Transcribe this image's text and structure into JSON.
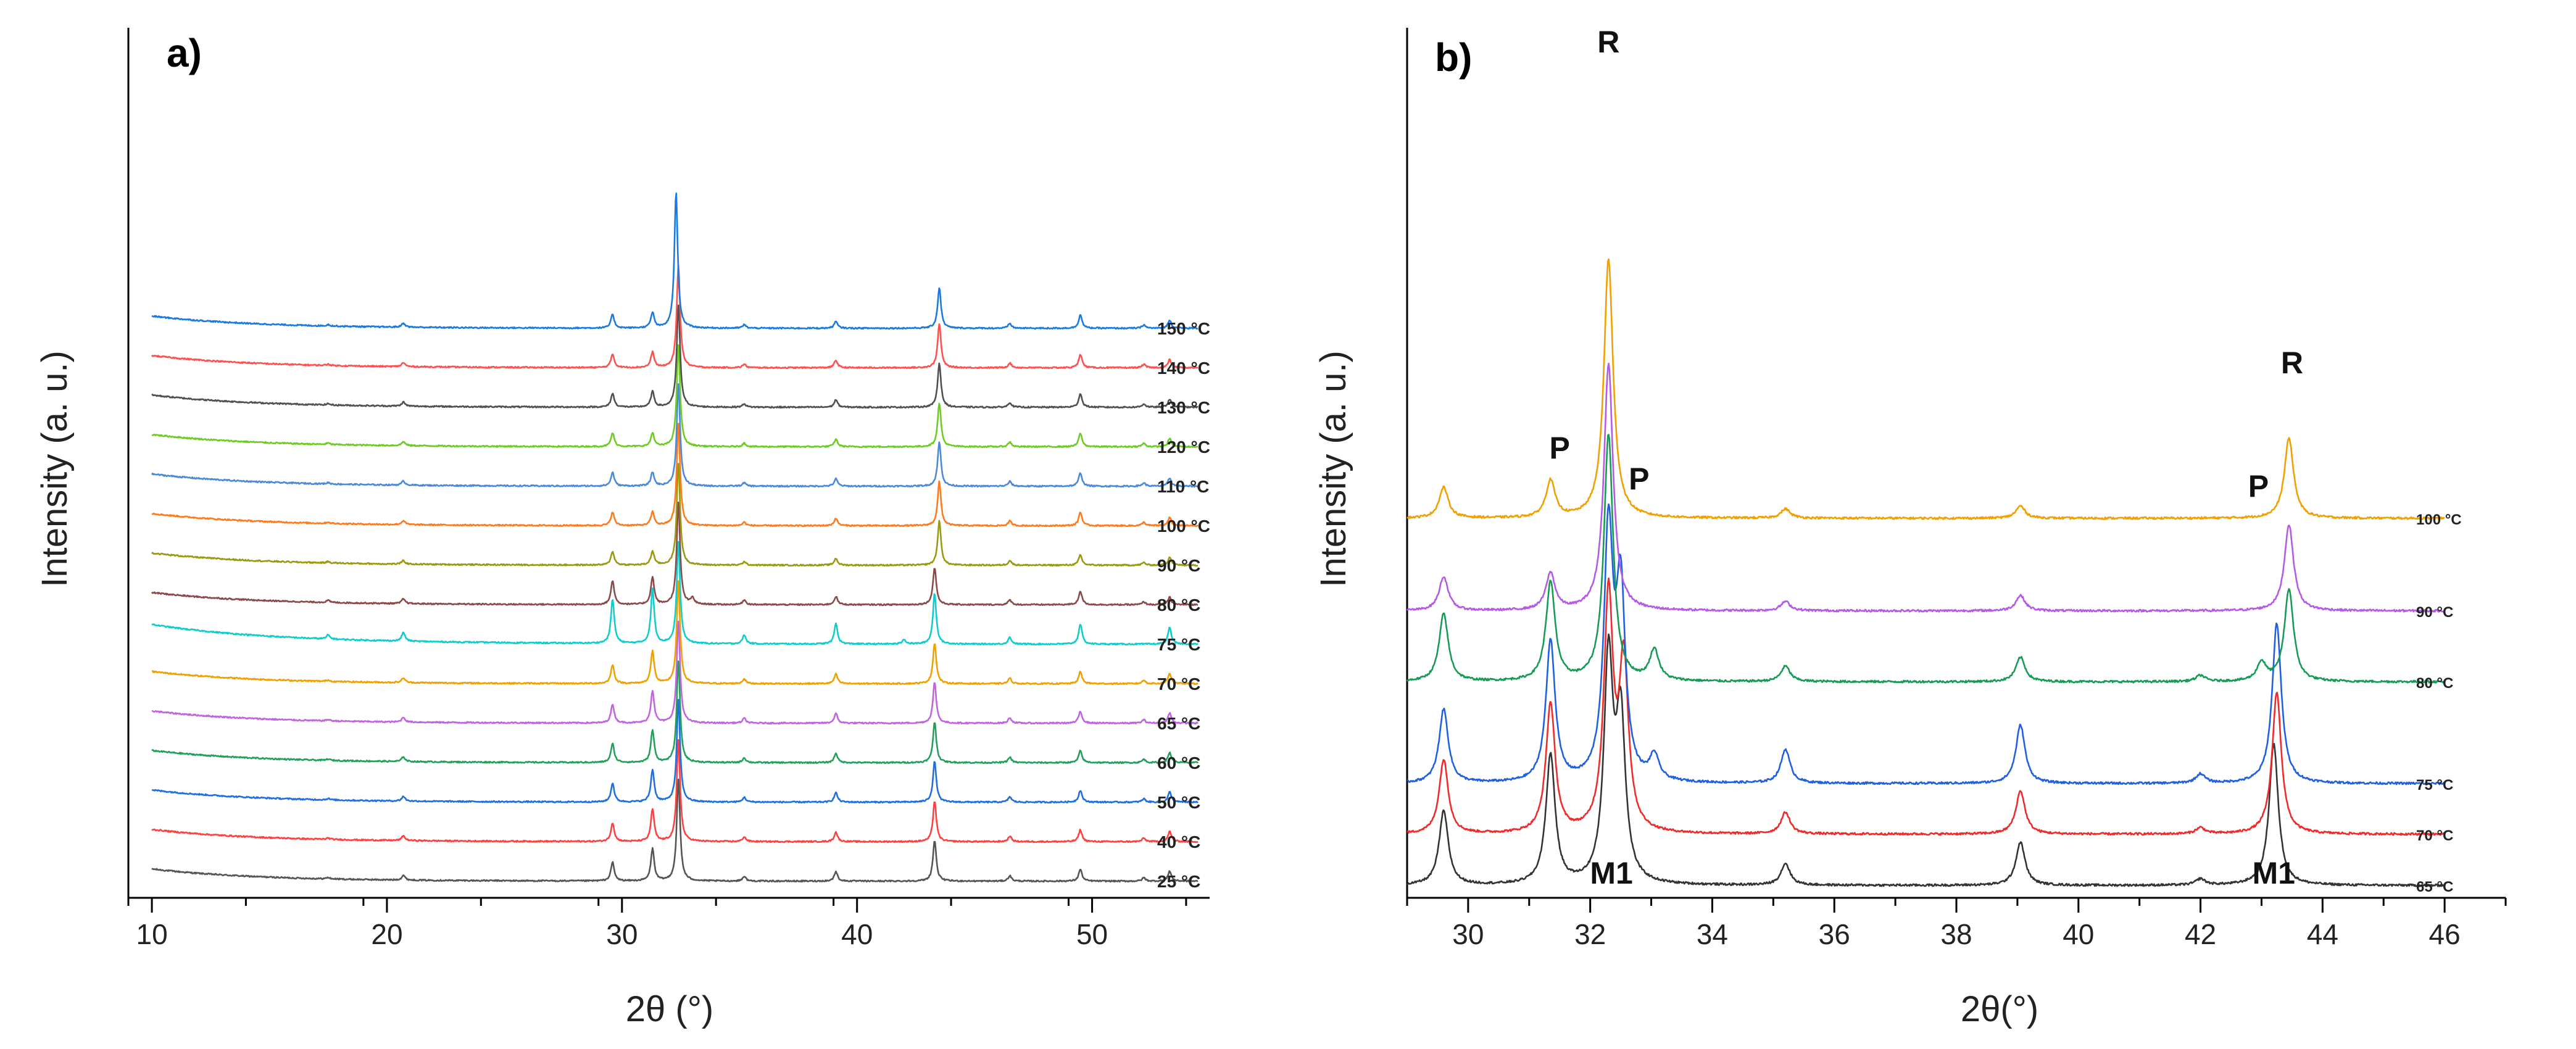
{
  "chart_data": [
    {
      "type": "line",
      "panel_label": "a)",
      "title": "",
      "xlabel": "2θ (°)",
      "ylabel": "Intensity (a. u.)",
      "xlim": [
        9,
        55
      ],
      "xticks": [
        10,
        20,
        30,
        40,
        50
      ],
      "x_range_measured": [
        10,
        54.5
      ],
      "offset_stacked": true,
      "y_tick_labels": "none",
      "peak_positions_2theta": [
        17.5,
        20.7,
        29.6,
        31.3,
        32.3,
        35.2,
        39.1,
        43.3,
        46.5,
        49.5,
        52.2,
        53.3
      ],
      "series": [
        {
          "name": "25 °C",
          "color": "#555555",
          "peaks": [
            [
              17.5,
              4
            ],
            [
              20.7,
              14
            ],
            [
              29.6,
              55
            ],
            [
              31.3,
              95
            ],
            [
              32.4,
              300
            ],
            [
              35.2,
              14
            ],
            [
              39.1,
              28
            ],
            [
              43.3,
              120
            ],
            [
              46.5,
              16
            ],
            [
              49.5,
              35
            ],
            [
              52.2,
              10
            ],
            [
              53.3,
              30
            ]
          ]
        },
        {
          "name": "40 °C",
          "color": "#ff4040",
          "peaks": [
            [
              17.5,
              4
            ],
            [
              20.7,
              14
            ],
            [
              29.6,
              55
            ],
            [
              31.3,
              95
            ],
            [
              32.4,
              300
            ],
            [
              35.2,
              14
            ],
            [
              39.1,
              28
            ],
            [
              43.3,
              120
            ],
            [
              46.5,
              16
            ],
            [
              49.5,
              35
            ],
            [
              52.2,
              10
            ],
            [
              53.3,
              30
            ]
          ]
        },
        {
          "name": "50 °C",
          "color": "#1f6fe0",
          "peaks": [
            [
              17.5,
              4
            ],
            [
              20.7,
              14
            ],
            [
              29.6,
              55
            ],
            [
              31.3,
              95
            ],
            [
              32.4,
              300
            ],
            [
              35.2,
              14
            ],
            [
              39.1,
              28
            ],
            [
              43.3,
              120
            ],
            [
              46.5,
              16
            ],
            [
              49.5,
              35
            ],
            [
              52.2,
              10
            ],
            [
              53.3,
              30
            ]
          ]
        },
        {
          "name": "60 °C",
          "color": "#22a05a",
          "peaks": [
            [
              17.5,
              4
            ],
            [
              20.7,
              14
            ],
            [
              29.6,
              55
            ],
            [
              31.3,
              95
            ],
            [
              32.4,
              300
            ],
            [
              35.2,
              14
            ],
            [
              39.1,
              28
            ],
            [
              43.3,
              120
            ],
            [
              46.5,
              16
            ],
            [
              49.5,
              35
            ],
            [
              52.2,
              10
            ],
            [
              53.3,
              30
            ]
          ]
        },
        {
          "name": "65 °C",
          "color": "#c064e0",
          "peaks": [
            [
              17.5,
              4
            ],
            [
              20.7,
              14
            ],
            [
              29.6,
              55
            ],
            [
              31.3,
              95
            ],
            [
              32.4,
              300
            ],
            [
              35.2,
              14
            ],
            [
              39.1,
              28
            ],
            [
              43.3,
              120
            ],
            [
              46.5,
              16
            ],
            [
              49.5,
              35
            ],
            [
              52.2,
              10
            ],
            [
              53.3,
              30
            ]
          ]
        },
        {
          "name": "70 °C",
          "color": "#f0a000",
          "peaks": [
            [
              17.5,
              4
            ],
            [
              20.7,
              14
            ],
            [
              29.6,
              55
            ],
            [
              31.3,
              95
            ],
            [
              32.4,
              300
            ],
            [
              35.2,
              14
            ],
            [
              39.1,
              28
            ],
            [
              43.3,
              120
            ],
            [
              46.5,
              16
            ],
            [
              49.5,
              35
            ],
            [
              52.2,
              10
            ],
            [
              53.3,
              30
            ]
          ]
        },
        {
          "name": "75 °C",
          "color": "#10cccc",
          "peaks": [
            [
              17.5,
              12
            ],
            [
              20.7,
              26
            ],
            [
              29.6,
              130
            ],
            [
              31.3,
              160
            ],
            [
              32.4,
              300
            ],
            [
              35.2,
              26
            ],
            [
              39.1,
              60
            ],
            [
              42.0,
              14
            ],
            [
              43.3,
              150
            ],
            [
              46.5,
              20
            ],
            [
              49.5,
              60
            ],
            [
              53.3,
              50
            ]
          ]
        },
        {
          "name": "80 °C",
          "color": "#8b4a4a",
          "peaks": [
            [
              17.5,
              6
            ],
            [
              20.7,
              14
            ],
            [
              29.6,
              70
            ],
            [
              31.3,
              80
            ],
            [
              32.4,
              300
            ],
            [
              33.0,
              18
            ],
            [
              35.2,
              14
            ],
            [
              39.1,
              24
            ],
            [
              43.3,
              110
            ],
            [
              46.5,
              14
            ],
            [
              49.5,
              40
            ],
            [
              52.2,
              8
            ],
            [
              53.3,
              22
            ]
          ]
        },
        {
          "name": "90 °C",
          "color": "#9a9a10",
          "peaks": [
            [
              17.5,
              4
            ],
            [
              20.7,
              10
            ],
            [
              29.6,
              40
            ],
            [
              31.3,
              40
            ],
            [
              32.4,
              300
            ],
            [
              35.2,
              10
            ],
            [
              39.1,
              20
            ],
            [
              43.5,
              130
            ],
            [
              46.5,
              14
            ],
            [
              49.5,
              30
            ],
            [
              52.2,
              8
            ],
            [
              53.3,
              24
            ]
          ]
        },
        {
          "name": "100 °C",
          "color": "#ff7a1a",
          "peaks": [
            [
              17.5,
              4
            ],
            [
              20.7,
              12
            ],
            [
              29.6,
              40
            ],
            [
              31.3,
              40
            ],
            [
              32.4,
              300
            ],
            [
              35.2,
              10
            ],
            [
              39.1,
              22
            ],
            [
              43.5,
              130
            ],
            [
              46.5,
              14
            ],
            [
              49.5,
              40
            ],
            [
              52.2,
              10
            ],
            [
              53.3,
              24
            ]
          ]
        },
        {
          "name": "110 °C",
          "color": "#4a8ad8",
          "peaks": [
            [
              17.5,
              4
            ],
            [
              20.7,
              12
            ],
            [
              29.6,
              40
            ],
            [
              31.3,
              40
            ],
            [
              32.4,
              300
            ],
            [
              35.2,
              10
            ],
            [
              39.1,
              22
            ],
            [
              43.5,
              130
            ],
            [
              46.5,
              14
            ],
            [
              49.5,
              40
            ],
            [
              52.2,
              10
            ],
            [
              53.3,
              24
            ]
          ]
        },
        {
          "name": "120 °C",
          "color": "#6ccc22",
          "peaks": [
            [
              17.5,
              4
            ],
            [
              20.7,
              12
            ],
            [
              29.6,
              40
            ],
            [
              31.3,
              40
            ],
            [
              32.4,
              300
            ],
            [
              35.2,
              10
            ],
            [
              39.1,
              22
            ],
            [
              43.5,
              130
            ],
            [
              46.5,
              14
            ],
            [
              49.5,
              40
            ],
            [
              52.2,
              10
            ],
            [
              53.3,
              24
            ]
          ]
        },
        {
          "name": "130 °C",
          "color": "#505050",
          "peaks": [
            [
              17.5,
              4
            ],
            [
              20.7,
              12
            ],
            [
              29.6,
              40
            ],
            [
              31.3,
              45
            ],
            [
              32.4,
              300
            ],
            [
              35.2,
              10
            ],
            [
              39.1,
              22
            ],
            [
              43.5,
              130
            ],
            [
              46.5,
              14
            ],
            [
              49.5,
              40
            ],
            [
              52.2,
              10
            ],
            [
              53.3,
              24
            ]
          ]
        },
        {
          "name": "140 °C",
          "color": "#ff5050",
          "peaks": [
            [
              17.5,
              4
            ],
            [
              20.7,
              12
            ],
            [
              29.6,
              40
            ],
            [
              31.3,
              45
            ],
            [
              32.4,
              300
            ],
            [
              35.2,
              10
            ],
            [
              39.1,
              22
            ],
            [
              43.5,
              130
            ],
            [
              46.5,
              14
            ],
            [
              49.5,
              40
            ],
            [
              52.2,
              10
            ],
            [
              53.3,
              24
            ]
          ]
        },
        {
          "name": "150 °C",
          "color": "#1a7ae0",
          "peaks": [
            [
              17.5,
              4
            ],
            [
              20.7,
              12
            ],
            [
              29.6,
              40
            ],
            [
              31.3,
              45
            ],
            [
              32.3,
              400
            ],
            [
              35.2,
              10
            ],
            [
              39.1,
              20
            ],
            [
              43.5,
              120
            ],
            [
              46.5,
              14
            ],
            [
              49.5,
              40
            ],
            [
              52.2,
              10
            ],
            [
              53.3,
              24
            ]
          ]
        }
      ]
    },
    {
      "type": "line",
      "panel_label": "b)",
      "title": "",
      "xlabel": "2θ(°)",
      "ylabel": "Intensity (a. u.)",
      "xlim": [
        29,
        47
      ],
      "xticks": [
        30,
        32,
        34,
        36,
        38,
        40,
        42,
        44,
        46
      ],
      "x_range_measured": [
        29.0,
        46.0
      ],
      "offset_stacked": true,
      "y_tick_labels": "none",
      "annotations": [
        {
          "text": "R",
          "x": 32.3,
          "meaning": "phase R peak (100 °C trace)"
        },
        {
          "text": "R",
          "x": 43.5,
          "meaning": "phase R peak (100 °C trace)"
        },
        {
          "text": "P",
          "x": 31.5,
          "meaning": "phase P peak"
        },
        {
          "text": "P",
          "x": 32.8,
          "meaning": "phase P peak"
        },
        {
          "text": "P",
          "x": 43.0,
          "meaning": "phase P peak"
        },
        {
          "text": "M1",
          "x": 32.5,
          "meaning": "phase M1 peak (65 °C trace)"
        },
        {
          "text": "M1",
          "x": 43.2,
          "meaning": "phase M1 peak (65 °C trace)"
        }
      ],
      "series": [
        {
          "name": "65 °C",
          "color": "#333333",
          "peaks": [
            [
              29.6,
              120
            ],
            [
              31.35,
              210
            ],
            [
              32.3,
              360
            ],
            [
              32.5,
              260
            ],
            [
              35.2,
              35
            ],
            [
              39.05,
              70
            ],
            [
              42.0,
              10
            ],
            [
              43.2,
              230
            ]
          ]
        },
        {
          "name": "70 °C",
          "color": "#ee2a2a",
          "peaks": [
            [
              29.6,
              120
            ],
            [
              31.35,
              210
            ],
            [
              32.3,
              380
            ],
            [
              32.55,
              270
            ],
            [
              35.2,
              35
            ],
            [
              39.05,
              70
            ],
            [
              42.0,
              10
            ],
            [
              43.25,
              230
            ]
          ]
        },
        {
          "name": "75 °C",
          "color": "#1f5fe0",
          "peaks": [
            [
              29.6,
              120
            ],
            [
              31.35,
              230
            ],
            [
              32.3,
              400
            ],
            [
              32.5,
              300
            ],
            [
              33.05,
              40
            ],
            [
              35.2,
              55
            ],
            [
              39.05,
              95
            ],
            [
              42.0,
              15
            ],
            [
              43.25,
              260
            ]
          ]
        },
        {
          "name": "80 °C",
          "color": "#179a55",
          "peaks": [
            [
              29.6,
              110
            ],
            [
              31.35,
              160
            ],
            [
              32.3,
              400
            ],
            [
              33.05,
              50
            ],
            [
              35.2,
              25
            ],
            [
              39.05,
              40
            ],
            [
              42.0,
              10
            ],
            [
              43.0,
              30
            ],
            [
              43.45,
              150
            ]
          ]
        },
        {
          "name": "90 °C",
          "color": "#b45ae6",
          "peaks": [
            [
              29.6,
              55
            ],
            [
              31.35,
              60
            ],
            [
              32.3,
              400
            ],
            [
              35.2,
              15
            ],
            [
              39.05,
              25
            ],
            [
              43.45,
              140
            ]
          ]
        },
        {
          "name": "100 °C",
          "color": "#f0a000",
          "peaks": [
            [
              29.6,
              50
            ],
            [
              31.35,
              60
            ],
            [
              32.3,
              420
            ],
            [
              35.2,
              15
            ],
            [
              39.05,
              20
            ],
            [
              43.45,
              130
            ]
          ]
        }
      ]
    }
  ]
}
